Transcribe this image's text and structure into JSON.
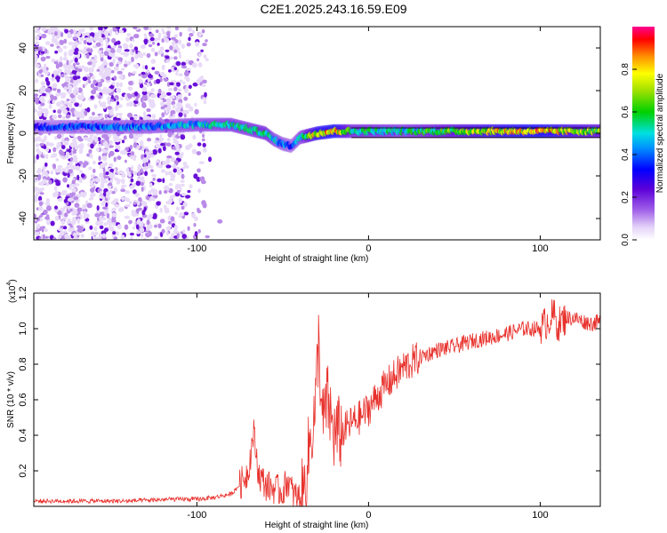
{
  "title": "C2E1.2025.243.16.59.E09",
  "chart_data": [
    {
      "type": "heatmap",
      "title": "",
      "xlabel": "Height of straight line (km)",
      "ylabel": "Frequency (Hz)",
      "xlim": [
        -195,
        135
      ],
      "ylim": [
        -50,
        50
      ],
      "xticks": [
        -100,
        0,
        100
      ],
      "xtick_labels": [
        "-100",
        "0",
        "100"
      ],
      "yticks": [
        -40,
        -20,
        0,
        20,
        40
      ],
      "ytick_labels": [
        "-40",
        "-20",
        "0",
        "20",
        "40"
      ],
      "ridge": {
        "x": [
          -195,
          -160,
          -130,
          -100,
          -80,
          -70,
          -60,
          -55,
          -50,
          -45,
          -40,
          -35,
          -30,
          -20,
          -10,
          0,
          20,
          40,
          60,
          80,
          100,
          120,
          135
        ],
        "freq": [
          3,
          3,
          3,
          4,
          4,
          2,
          0,
          -3,
          -5,
          -6,
          -2,
          -1,
          0,
          1,
          1,
          1,
          1,
          1,
          1,
          1,
          1,
          1,
          1
        ],
        "amplitude": [
          0.35,
          0.4,
          0.45,
          0.5,
          0.55,
          0.55,
          0.6,
          0.5,
          0.45,
          0.4,
          0.5,
          0.7,
          0.85,
          0.9,
          0.6,
          0.6,
          0.55,
          0.65,
          0.75,
          0.85,
          0.9,
          0.75,
          0.7
        ]
      },
      "scatter_region_km": [
        -195,
        -95
      ],
      "colorbar": {
        "label": "Normalized spectral amplitude",
        "range": [
          0,
          1
        ],
        "ticks": [
          0.0,
          0.2,
          0.4,
          0.6,
          0.8
        ],
        "tick_labels": [
          "0.0",
          "0.2",
          "0.4",
          "0.6",
          "0.8"
        ]
      }
    },
    {
      "type": "line",
      "title": "",
      "xlabel": "Height of straight line (km)",
      "ylabel": "SNR (10 * v/v)",
      "y_multiplier": "(x10",
      "y_multiplier_exp": "4",
      "y_multiplier_close": ")",
      "xlim": [
        -195,
        135
      ],
      "ylim": [
        0,
        1.2
      ],
      "xticks": [
        -100,
        0,
        100
      ],
      "xtick_labels": [
        "-100",
        "0",
        "100"
      ],
      "yticks": [
        0.2,
        0.4,
        0.6,
        0.8,
        1.0,
        1.2
      ],
      "ytick_labels": [
        "0.2",
        "0.4",
        "0.6",
        "0.8",
        "1.0",
        "1.2"
      ],
      "color": "#e8312c",
      "series": [
        {
          "name": "SNR",
          "x": [
            -195,
            -170,
            -140,
            -115,
            -100,
            -90,
            -80,
            -75,
            -70,
            -67,
            -64,
            -60,
            -55,
            -50,
            -47,
            -44,
            -41,
            -38,
            -35,
            -31,
            -29,
            -27,
            -24,
            -20,
            -15,
            -10,
            -5,
            0,
            5,
            10,
            15,
            20,
            30,
            40,
            50,
            60,
            70,
            80,
            90,
            100,
            105,
            108,
            110,
            115,
            120,
            125,
            130,
            135
          ],
          "y": [
            0.03,
            0.03,
            0.03,
            0.04,
            0.04,
            0.05,
            0.07,
            0.12,
            0.2,
            0.42,
            0.18,
            0.12,
            0.1,
            0.08,
            0.15,
            0.07,
            0.05,
            0.05,
            0.3,
            0.55,
            0.95,
            0.45,
            0.6,
            0.4,
            0.42,
            0.47,
            0.5,
            0.55,
            0.62,
            0.68,
            0.73,
            0.78,
            0.84,
            0.88,
            0.9,
            0.93,
            0.95,
            0.97,
            1.0,
            1.0,
            1.05,
            1.08,
            1.02,
            1.06,
            1.06,
            1.04,
            1.03,
            1.04
          ]
        }
      ]
    }
  ]
}
